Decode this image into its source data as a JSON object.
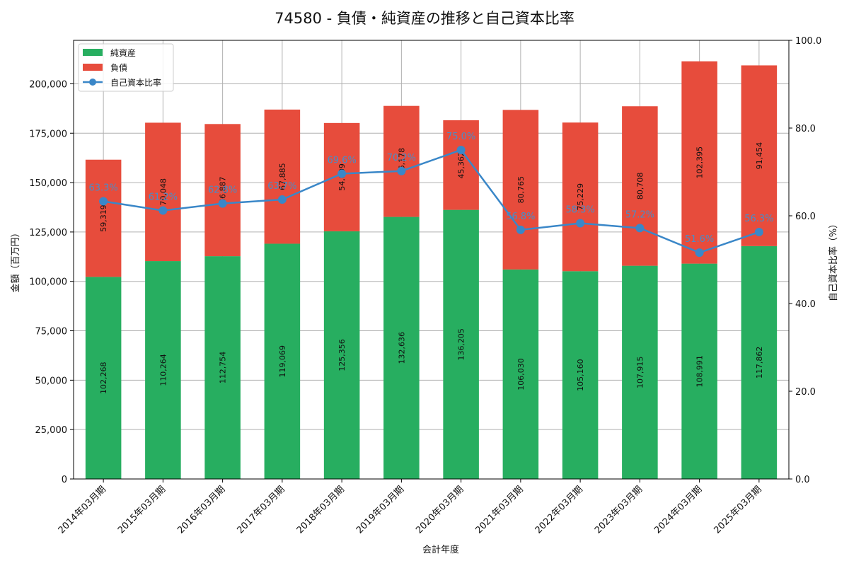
{
  "chart_data": {
    "type": "bar",
    "stacked": true,
    "title": "74580 - 負債・純資産の推移と自己資本比率",
    "xlabel": "会計年度",
    "ylabel": "金額（百万円）",
    "y2label": "自己資本比率（%）",
    "ylim": [
      0,
      222000
    ],
    "y2lim": [
      0,
      100
    ],
    "yticks": [
      "0",
      "25,000",
      "50,000",
      "75,000",
      "100,000",
      "125,000",
      "150,000",
      "175,000",
      "200,000"
    ],
    "y2ticks": [
      "0.0",
      "20.0",
      "40.0",
      "60.0",
      "80.0",
      "100.0"
    ],
    "grid": true,
    "legend_position": "top-left",
    "categories": [
      "2014年03月期",
      "2015年03月期",
      "2016年03月期",
      "2017年03月期",
      "2018年03月期",
      "2019年03月期",
      "2020年03月期",
      "2021年03月期",
      "2022年03月期",
      "2023年03月期",
      "2024年03月期",
      "2025年03月期"
    ],
    "series": [
      {
        "name": "純資産",
        "color": "#27ae60",
        "values": [
          102268,
          110264,
          112754,
          119069,
          125356,
          132636,
          136205,
          106030,
          105160,
          107915,
          108991,
          117862
        ],
        "labels": [
          "102,268",
          "110,264",
          "112,754",
          "119,069",
          "125,356",
          "132,636",
          "136,205",
          "106,030",
          "105,160",
          "107,915",
          "108,991",
          "117,862"
        ]
      },
      {
        "name": "負債",
        "color": "#e74c3c",
        "values": [
          59319,
          70048,
          66887,
          67885,
          54809,
          56178,
          45362,
          80765,
          75229,
          80708,
          102395,
          91454
        ],
        "labels": [
          "59,319",
          "70,048",
          "66,887",
          "67,885",
          "54,809",
          "56,178",
          "45,362",
          "80,765",
          "75,229",
          "80,708",
          "102,395",
          "91,454"
        ]
      }
    ],
    "line_series": {
      "name": "自己資本比率",
      "color": "#3a87c8",
      "values": [
        63.3,
        61.2,
        62.8,
        63.7,
        69.6,
        70.2,
        75.0,
        56.8,
        58.3,
        57.2,
        51.6,
        56.3
      ],
      "labels": [
        "63.3%",
        "61.2%",
        "62.8%",
        "63.7%",
        "69.6%",
        "70.2%",
        "75.0%",
        "56.8%",
        "58.3%",
        "57.2%",
        "51.6%",
        "56.3%"
      ]
    }
  }
}
